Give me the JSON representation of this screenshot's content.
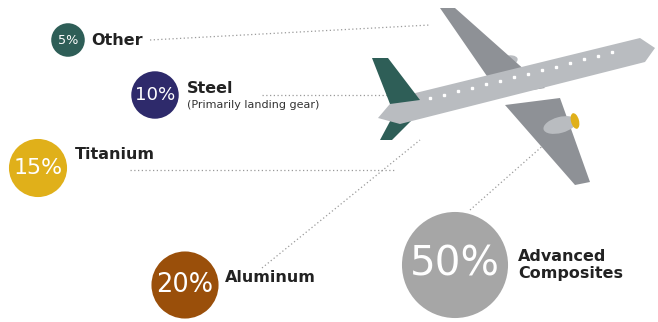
{
  "chart_data": {
    "type": "bubble",
    "categories": [
      "Other",
      "Steel",
      "Titanium",
      "Aluminum",
      "Advanced Composites"
    ],
    "values": [
      5,
      10,
      15,
      20,
      50
    ],
    "value_labels": [
      "5%",
      "10%",
      "15%",
      "20%",
      "50%"
    ],
    "data_labels": true,
    "colors": [
      "#2e5e57",
      "#2e2a6b",
      "#e0b01a",
      "#9a4f0a",
      "#a6a6a6"
    ],
    "annotations": [
      {
        "category": "Steel",
        "text": "(Primarily landing gear)"
      }
    ],
    "tick_labels": false
  }
}
